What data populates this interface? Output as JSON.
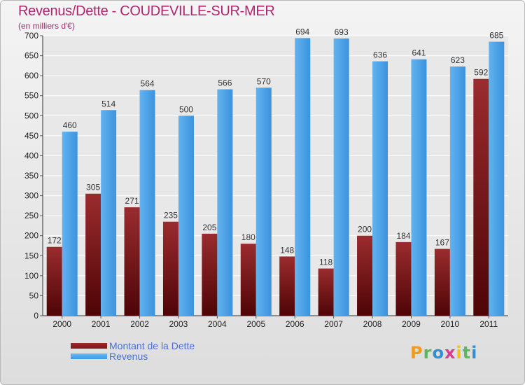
{
  "header": {
    "title": "Revenus/Dette - COUDEVILLE-SUR-MER",
    "subtitle": "(en milliers d'€)"
  },
  "legend": [
    {
      "label": "Montant de la Dette",
      "color": "#7a1416"
    },
    {
      "label": "Revenus",
      "color": "#3d9be6"
    }
  ],
  "logo": {
    "letters": [
      "P",
      "r",
      "o",
      "x",
      "i",
      "t",
      "i"
    ],
    "colors": [
      "#f29a1b",
      "#5cb85c",
      "#2f8fd6",
      "#d43f8d",
      "#f2c21b",
      "#5cb85c",
      "#2f8fd6"
    ]
  },
  "chart_data": {
    "type": "bar",
    "categories": [
      "2000",
      "2001",
      "2002",
      "2003",
      "2004",
      "2005",
      "2006",
      "2007",
      "2008",
      "2009",
      "2010",
      "2011"
    ],
    "series": [
      {
        "name": "Montant de la Dette",
        "values": [
          172,
          305,
          271,
          235,
          205,
          180,
          148,
          118,
          200,
          184,
          167,
          592
        ],
        "color": "#7a1416"
      },
      {
        "name": "Revenus",
        "values": [
          460,
          514,
          564,
          500,
          566,
          570,
          694,
          693,
          636,
          641,
          623,
          685
        ],
        "color": "#3d9be6"
      }
    ],
    "ylim": [
      0,
      700
    ],
    "yticks": [
      0,
      50,
      100,
      150,
      200,
      250,
      300,
      350,
      400,
      450,
      500,
      550,
      600,
      650,
      700
    ],
    "grid": true,
    "legend_position": "bottom-left"
  }
}
